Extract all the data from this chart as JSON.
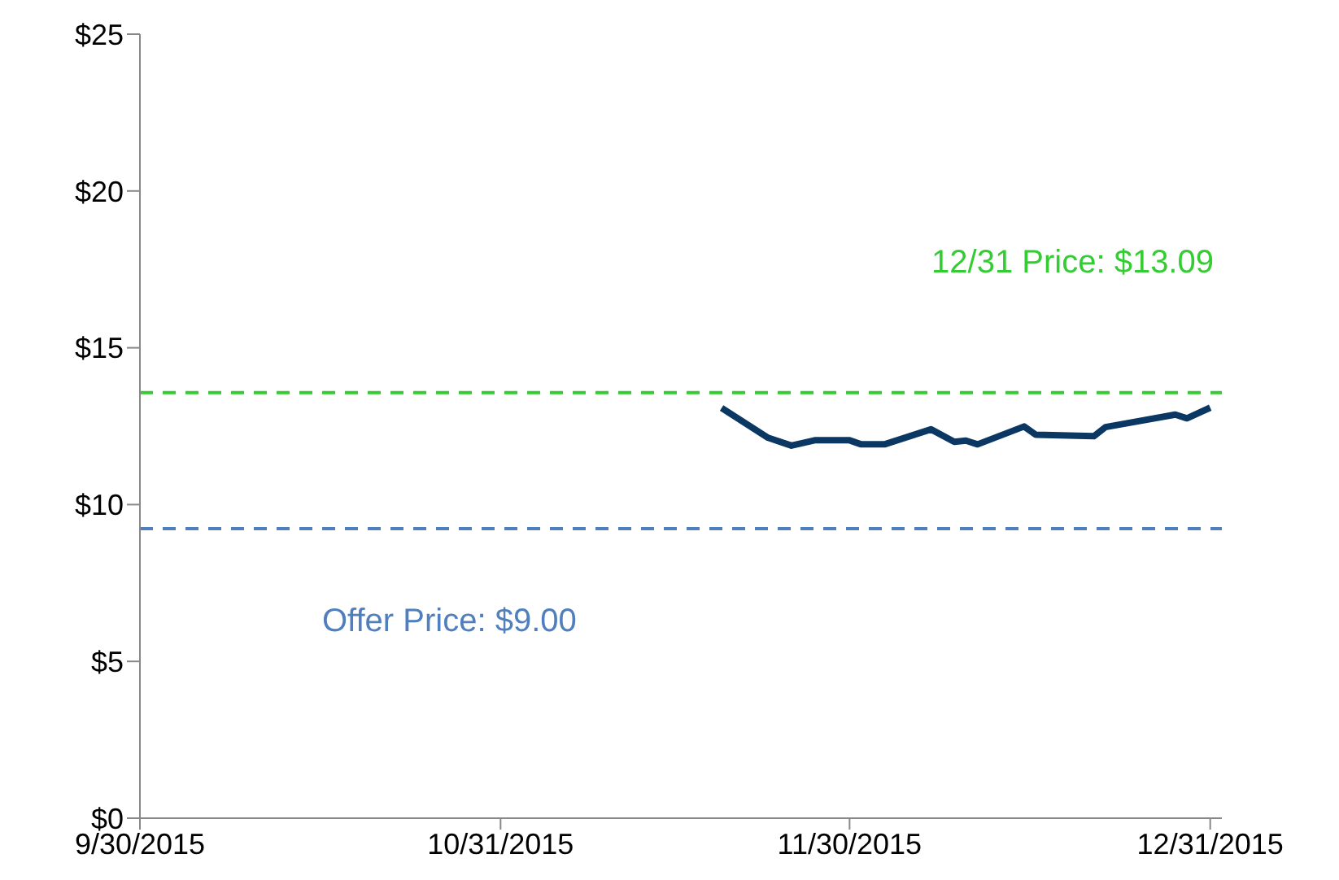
{
  "chart_data": {
    "type": "line",
    "x": [
      "2015-11-19",
      "2015-11-23",
      "2015-11-25",
      "2015-11-27",
      "2015-11-30",
      "2015-12-01",
      "2015-12-03",
      "2015-12-07",
      "2015-12-09",
      "2015-12-10",
      "2015-12-11",
      "2015-12-15",
      "2015-12-16",
      "2015-12-21",
      "2015-12-22",
      "2015-12-28",
      "2015-12-29",
      "2015-12-31"
    ],
    "series": [
      {
        "color": "#0b3763",
        "values": [
          13.08,
          12.13,
          11.88,
          12.05,
          12.05,
          11.92,
          11.92,
          12.4,
          12.0,
          12.04,
          11.92,
          12.49,
          12.23,
          12.18,
          12.47,
          12.87,
          12.75,
          13.09
        ]
      }
    ],
    "xlim": [
      "2015-09-30",
      "2016-01-01"
    ],
    "xticks": [
      {
        "value": "2015-09-30",
        "label": "9/30/2015"
      },
      {
        "value": "2015-10-31",
        "label": "10/31/2015"
      },
      {
        "value": "2015-11-30",
        "label": "11/30/2015"
      },
      {
        "value": "2015-12-31",
        "label": "12/31/2015"
      }
    ],
    "ylim": [
      0,
      25
    ],
    "yticks": [
      {
        "value": 0,
        "label": "$0"
      },
      {
        "value": 5,
        "label": "$5"
      },
      {
        "value": 10,
        "label": "$10"
      },
      {
        "value": 15,
        "label": "$15"
      },
      {
        "value": 20,
        "label": "$20"
      },
      {
        "value": 25,
        "label": "$25"
      }
    ],
    "ref_lines": [
      {
        "axis": "y",
        "value": 13.57,
        "color": "#33cc33",
        "line_style": "dashed"
      },
      {
        "axis": "y",
        "value": 9.23,
        "color": "#4f7fbf",
        "line_style": "dashed"
      }
    ],
    "annotations": [
      "12/31 Price: $13.09",
      "Offer Price: $9.00"
    ],
    "grid": false,
    "legend": false,
    "marker": "none",
    "line_style": "solid"
  }
}
